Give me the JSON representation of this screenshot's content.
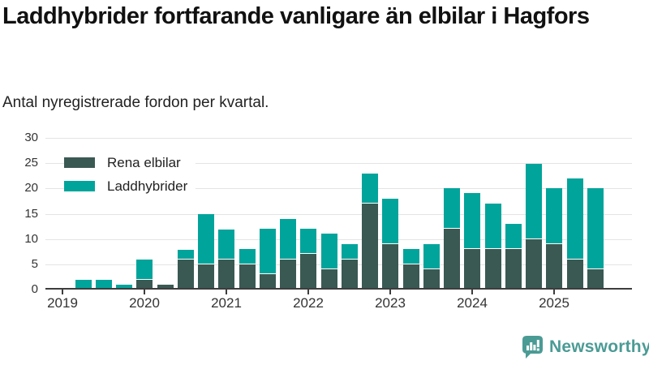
{
  "header": {
    "title": "Laddhybrider fortfarande vanligare än elbilar i Hagfors",
    "subtitle": "Antal nyregistrerade fordon per kvartal."
  },
  "legend": {
    "items": [
      {
        "label": "Rena elbilar",
        "color": "#3a5952"
      },
      {
        "label": "Laddhybrider",
        "color": "#01a49b"
      }
    ]
  },
  "chart_data": {
    "type": "bar",
    "stacked": true,
    "title": "Laddhybrider fortfarande vanligare än elbilar i Hagfors",
    "subtitle": "Antal nyregistrerade fordon per kvartal.",
    "xlabel": "",
    "ylabel": "",
    "ylim": [
      0,
      30
    ],
    "yticks": [
      0,
      5,
      10,
      15,
      20,
      25,
      30
    ],
    "grid": true,
    "legend_position": "top-left",
    "categories": [
      "2019 Q1",
      "2019 Q2",
      "2019 Q3",
      "2019 Q4",
      "2020 Q1",
      "2020 Q2",
      "2020 Q3",
      "2020 Q4",
      "2021 Q1",
      "2021 Q2",
      "2021 Q3",
      "2021 Q4",
      "2022 Q1",
      "2022 Q2",
      "2022 Q3",
      "2022 Q4",
      "2023 Q1",
      "2023 Q2",
      "2023 Q3",
      "2023 Q4",
      "2024 Q1",
      "2024 Q2",
      "2024 Q3",
      "2024 Q4",
      "2025 Q1",
      "2025 Q2",
      "2025 Q3"
    ],
    "x_tick_labels": [
      "2019",
      "2020",
      "2021",
      "2022",
      "2023",
      "2024",
      "2025"
    ],
    "x_tick_indices": [
      0,
      4,
      8,
      12,
      16,
      20,
      24
    ],
    "series": [
      {
        "name": "Rena elbilar",
        "color": "#3a5952",
        "values": [
          0,
          0,
          0,
          0,
          2,
          1,
          6,
          5,
          6,
          5,
          3,
          6,
          7,
          4,
          6,
          17,
          9,
          5,
          4,
          12,
          8,
          8,
          8,
          10,
          9,
          6,
          4
        ]
      },
      {
        "name": "Laddhybrider",
        "color": "#01a49b",
        "values": [
          0,
          2,
          2,
          1,
          4,
          0,
          2,
          10,
          6,
          3,
          9,
          8,
          5,
          7,
          3,
          6,
          9,
          3,
          5,
          8,
          11,
          9,
          5,
          15,
          11,
          16,
          16
        ]
      }
    ]
  },
  "footer": {
    "brand": "Newsworthy",
    "brand_color": "#4b9b95",
    "logo_icon": "bar-chart-speech-bubble"
  },
  "colors": {
    "axis": "#3d3d3d",
    "grid": "#e4e4e4",
    "tick_text": "#333333",
    "title_text": "#111111"
  }
}
